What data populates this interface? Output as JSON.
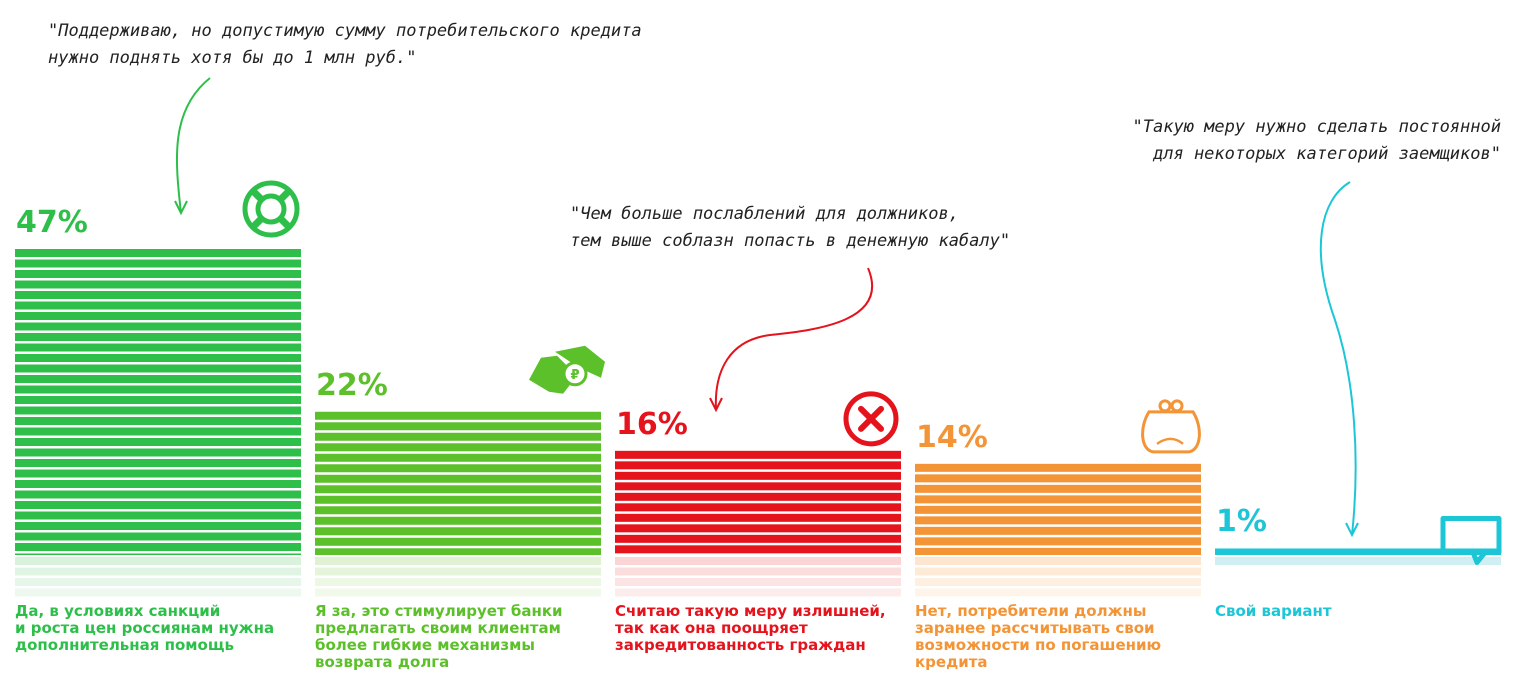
{
  "chart_data": {
    "type": "bar",
    "categories": [
      "Да, в условиях санкций\nи роста цен россиянам нужна\nдополнительная помощь",
      "Я за, это стимулирует банки\nпредлагать своим клиентам\nболее гибкие механизмы\nвозврата долга",
      "Считаю такую меру излишней,\nтак как она поощряет\nзакредитованность граждан",
      "Нет, потребители должны\nзаранее рассчитывать свои\nвозможности по погашению\nкредита",
      "Свой вариант"
    ],
    "values": [
      47,
      22,
      16,
      14,
      1
    ],
    "value_labels": [
      "47%",
      "22%",
      "16%",
      "14%",
      "1%"
    ],
    "colors": [
      "#2dbf4a",
      "#5cc02a",
      "#e4131c",
      "#f39436",
      "#1dc6d6"
    ],
    "pale_colors": [
      "#d8f2dc",
      "#e1f2d4",
      "#fbd5d6",
      "#fde6cf",
      "#cfeff3"
    ],
    "icons": [
      "lifebuoy-icon",
      "handshake-money-icon",
      "cross-circle-icon",
      "purse-icon",
      "speech-bubble-icon"
    ],
    "ylim": [
      0,
      47
    ]
  },
  "quotes": {
    "q1": "\"Поддерживаю, но допустимую сумму потребительского кредита\nнужно поднять хотя бы до 1 млн руб.\"",
    "q2": "\"Чем больше послаблений для должников,\nтем выше соблазн попасть в денежную кабалу\"",
    "q3": "\"Такую меру нужно сделать постоянной\nдля некоторых категорий заемщиков\""
  }
}
